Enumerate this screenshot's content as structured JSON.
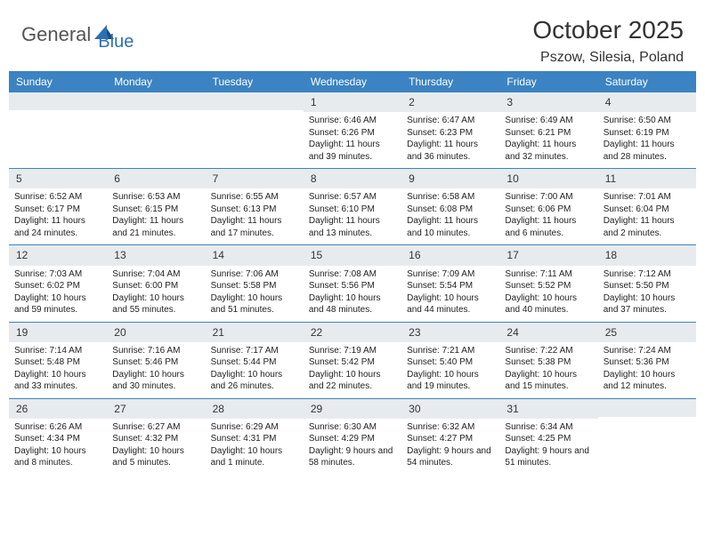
{
  "logo": {
    "part1": "General",
    "part2": "Blue"
  },
  "title": "October 2025",
  "location": "Pszow, Silesia, Poland",
  "colors": {
    "header_bg": "#3b83c2",
    "daynum_bg": "#e8ebee",
    "border": "#3b83c2",
    "logo_gray": "#555555",
    "logo_blue": "#2d6fb5"
  },
  "day_names": [
    "Sunday",
    "Monday",
    "Tuesday",
    "Wednesday",
    "Thursday",
    "Friday",
    "Saturday"
  ],
  "weeks": [
    [
      {
        "empty": true
      },
      {
        "empty": true
      },
      {
        "empty": true
      },
      {
        "num": "1",
        "sunrise": "Sunrise: 6:46 AM",
        "sunset": "Sunset: 6:26 PM",
        "daylight": "Daylight: 11 hours and 39 minutes."
      },
      {
        "num": "2",
        "sunrise": "Sunrise: 6:47 AM",
        "sunset": "Sunset: 6:23 PM",
        "daylight": "Daylight: 11 hours and 36 minutes."
      },
      {
        "num": "3",
        "sunrise": "Sunrise: 6:49 AM",
        "sunset": "Sunset: 6:21 PM",
        "daylight": "Daylight: 11 hours and 32 minutes."
      },
      {
        "num": "4",
        "sunrise": "Sunrise: 6:50 AM",
        "sunset": "Sunset: 6:19 PM",
        "daylight": "Daylight: 11 hours and 28 minutes."
      }
    ],
    [
      {
        "num": "5",
        "sunrise": "Sunrise: 6:52 AM",
        "sunset": "Sunset: 6:17 PM",
        "daylight": "Daylight: 11 hours and 24 minutes."
      },
      {
        "num": "6",
        "sunrise": "Sunrise: 6:53 AM",
        "sunset": "Sunset: 6:15 PM",
        "daylight": "Daylight: 11 hours and 21 minutes."
      },
      {
        "num": "7",
        "sunrise": "Sunrise: 6:55 AM",
        "sunset": "Sunset: 6:13 PM",
        "daylight": "Daylight: 11 hours and 17 minutes."
      },
      {
        "num": "8",
        "sunrise": "Sunrise: 6:57 AM",
        "sunset": "Sunset: 6:10 PM",
        "daylight": "Daylight: 11 hours and 13 minutes."
      },
      {
        "num": "9",
        "sunrise": "Sunrise: 6:58 AM",
        "sunset": "Sunset: 6:08 PM",
        "daylight": "Daylight: 11 hours and 10 minutes."
      },
      {
        "num": "10",
        "sunrise": "Sunrise: 7:00 AM",
        "sunset": "Sunset: 6:06 PM",
        "daylight": "Daylight: 11 hours and 6 minutes."
      },
      {
        "num": "11",
        "sunrise": "Sunrise: 7:01 AM",
        "sunset": "Sunset: 6:04 PM",
        "daylight": "Daylight: 11 hours and 2 minutes."
      }
    ],
    [
      {
        "num": "12",
        "sunrise": "Sunrise: 7:03 AM",
        "sunset": "Sunset: 6:02 PM",
        "daylight": "Daylight: 10 hours and 59 minutes."
      },
      {
        "num": "13",
        "sunrise": "Sunrise: 7:04 AM",
        "sunset": "Sunset: 6:00 PM",
        "daylight": "Daylight: 10 hours and 55 minutes."
      },
      {
        "num": "14",
        "sunrise": "Sunrise: 7:06 AM",
        "sunset": "Sunset: 5:58 PM",
        "daylight": "Daylight: 10 hours and 51 minutes."
      },
      {
        "num": "15",
        "sunrise": "Sunrise: 7:08 AM",
        "sunset": "Sunset: 5:56 PM",
        "daylight": "Daylight: 10 hours and 48 minutes."
      },
      {
        "num": "16",
        "sunrise": "Sunrise: 7:09 AM",
        "sunset": "Sunset: 5:54 PM",
        "daylight": "Daylight: 10 hours and 44 minutes."
      },
      {
        "num": "17",
        "sunrise": "Sunrise: 7:11 AM",
        "sunset": "Sunset: 5:52 PM",
        "daylight": "Daylight: 10 hours and 40 minutes."
      },
      {
        "num": "18",
        "sunrise": "Sunrise: 7:12 AM",
        "sunset": "Sunset: 5:50 PM",
        "daylight": "Daylight: 10 hours and 37 minutes."
      }
    ],
    [
      {
        "num": "19",
        "sunrise": "Sunrise: 7:14 AM",
        "sunset": "Sunset: 5:48 PM",
        "daylight": "Daylight: 10 hours and 33 minutes."
      },
      {
        "num": "20",
        "sunrise": "Sunrise: 7:16 AM",
        "sunset": "Sunset: 5:46 PM",
        "daylight": "Daylight: 10 hours and 30 minutes."
      },
      {
        "num": "21",
        "sunrise": "Sunrise: 7:17 AM",
        "sunset": "Sunset: 5:44 PM",
        "daylight": "Daylight: 10 hours and 26 minutes."
      },
      {
        "num": "22",
        "sunrise": "Sunrise: 7:19 AM",
        "sunset": "Sunset: 5:42 PM",
        "daylight": "Daylight: 10 hours and 22 minutes."
      },
      {
        "num": "23",
        "sunrise": "Sunrise: 7:21 AM",
        "sunset": "Sunset: 5:40 PM",
        "daylight": "Daylight: 10 hours and 19 minutes."
      },
      {
        "num": "24",
        "sunrise": "Sunrise: 7:22 AM",
        "sunset": "Sunset: 5:38 PM",
        "daylight": "Daylight: 10 hours and 15 minutes."
      },
      {
        "num": "25",
        "sunrise": "Sunrise: 7:24 AM",
        "sunset": "Sunset: 5:36 PM",
        "daylight": "Daylight: 10 hours and 12 minutes."
      }
    ],
    [
      {
        "num": "26",
        "sunrise": "Sunrise: 6:26 AM",
        "sunset": "Sunset: 4:34 PM",
        "daylight": "Daylight: 10 hours and 8 minutes."
      },
      {
        "num": "27",
        "sunrise": "Sunrise: 6:27 AM",
        "sunset": "Sunset: 4:32 PM",
        "daylight": "Daylight: 10 hours and 5 minutes."
      },
      {
        "num": "28",
        "sunrise": "Sunrise: 6:29 AM",
        "sunset": "Sunset: 4:31 PM",
        "daylight": "Daylight: 10 hours and 1 minute."
      },
      {
        "num": "29",
        "sunrise": "Sunrise: 6:30 AM",
        "sunset": "Sunset: 4:29 PM",
        "daylight": "Daylight: 9 hours and 58 minutes."
      },
      {
        "num": "30",
        "sunrise": "Sunrise: 6:32 AM",
        "sunset": "Sunset: 4:27 PM",
        "daylight": "Daylight: 9 hours and 54 minutes."
      },
      {
        "num": "31",
        "sunrise": "Sunrise: 6:34 AM",
        "sunset": "Sunset: 4:25 PM",
        "daylight": "Daylight: 9 hours and 51 minutes."
      },
      {
        "empty": true
      }
    ]
  ]
}
